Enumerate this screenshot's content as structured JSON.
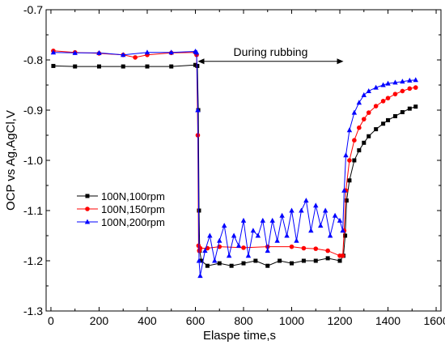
{
  "chart_data": {
    "type": "line",
    "title": "",
    "xlabel": "Elaspe time,s",
    "ylabel": "OCP vs Ag,AgCl,V",
    "xlim": [
      -20,
      1620
    ],
    "ylim": [
      -1.3,
      -0.7
    ],
    "xticks": [
      0,
      200,
      400,
      600,
      800,
      1000,
      1200,
      1400,
      1600
    ],
    "yticks": [
      -0.7,
      -0.8,
      -0.9,
      -1.0,
      -1.1,
      -1.2,
      -1.3
    ],
    "xtick_labels": [
      "0",
      "200",
      "400",
      "600",
      "800",
      "1000",
      "1200",
      "1400",
      "1600"
    ],
    "ytick_labels": [
      "-0.7",
      "-0.8",
      "-0.9",
      "-1.0",
      "-1.1",
      "-1.2",
      "-1.3"
    ],
    "grid": false,
    "legend_position": "left-middle",
    "annotation": {
      "text": "During rubbing",
      "x_start": 610,
      "x_end": 1215,
      "y": -0.79
    },
    "series": [
      {
        "name": "100N,100rpm",
        "color": "#000000",
        "marker": "square",
        "x": [
          10,
          100,
          200,
          300,
          400,
          500,
          600,
          608,
          612,
          615,
          618,
          625,
          650,
          700,
          750,
          800,
          850,
          900,
          950,
          1000,
          1050,
          1100,
          1150,
          1200,
          1215,
          1222,
          1228,
          1240,
          1260,
          1280,
          1300,
          1320,
          1350,
          1380,
          1400,
          1430,
          1460,
          1490,
          1515
        ],
        "y": [
          -0.812,
          -0.813,
          -0.813,
          -0.813,
          -0.813,
          -0.813,
          -0.81,
          -0.812,
          -0.9,
          -1.1,
          -1.18,
          -1.2,
          -1.21,
          -1.205,
          -1.21,
          -1.205,
          -1.2,
          -1.21,
          -1.2,
          -1.205,
          -1.2,
          -1.2,
          -1.195,
          -1.2,
          -1.19,
          -1.15,
          -1.08,
          -1.04,
          -1.0,
          -0.98,
          -0.965,
          -0.952,
          -0.938,
          -0.927,
          -0.92,
          -0.912,
          -0.904,
          -0.897,
          -0.893
        ]
      },
      {
        "name": "100N,150rpm",
        "color": "#ff0000",
        "marker": "circle",
        "x": [
          10,
          100,
          200,
          300,
          350,
          400,
          500,
          600,
          605,
          610,
          613,
          616,
          620,
          650,
          700,
          800,
          900,
          1000,
          1050,
          1100,
          1150,
          1200,
          1212,
          1218,
          1225,
          1240,
          1260,
          1280,
          1300,
          1320,
          1350,
          1380,
          1400,
          1430,
          1460,
          1490,
          1515
        ],
        "y": [
          -0.782,
          -0.785,
          -0.787,
          -0.79,
          -0.795,
          -0.79,
          -0.786,
          -0.785,
          -0.79,
          -0.95,
          -1.17,
          -1.18,
          -1.175,
          -1.175,
          -1.172,
          -1.174,
          -1.172,
          -1.172,
          -1.175,
          -1.176,
          -1.18,
          -1.19,
          -1.19,
          -1.14,
          -1.06,
          -1.0,
          -0.96,
          -0.935,
          -0.918,
          -0.905,
          -0.892,
          -0.882,
          -0.876,
          -0.868,
          -0.862,
          -0.857,
          -0.855
        ]
      },
      {
        "name": "100N,200rpm",
        "color": "#0000ff",
        "marker": "triangle",
        "x": [
          10,
          100,
          200,
          300,
          400,
          500,
          600,
          605,
          610,
          615,
          620,
          640,
          660,
          680,
          700,
          720,
          740,
          760,
          780,
          800,
          820,
          840,
          860,
          880,
          900,
          920,
          940,
          960,
          980,
          1000,
          1020,
          1040,
          1060,
          1080,
          1100,
          1120,
          1140,
          1160,
          1180,
          1200,
          1212,
          1218,
          1225,
          1240,
          1260,
          1280,
          1300,
          1320,
          1350,
          1380,
          1400,
          1430,
          1460,
          1490,
          1515
        ],
        "y": [
          -0.785,
          -0.786,
          -0.786,
          -0.79,
          -0.785,
          -0.785,
          -0.783,
          -0.785,
          -0.9,
          -1.2,
          -1.23,
          -1.18,
          -1.15,
          -1.2,
          -1.16,
          -1.13,
          -1.19,
          -1.15,
          -1.17,
          -1.12,
          -1.19,
          -1.14,
          -1.15,
          -1.12,
          -1.18,
          -1.12,
          -1.16,
          -1.11,
          -1.15,
          -1.1,
          -1.16,
          -1.1,
          -1.08,
          -1.14,
          -1.09,
          -1.13,
          -1.1,
          -1.15,
          -1.11,
          -1.12,
          -1.14,
          -1.06,
          -0.99,
          -0.94,
          -0.905,
          -0.885,
          -0.87,
          -0.862,
          -0.855,
          -0.85,
          -0.847,
          -0.845,
          -0.843,
          -0.841,
          -0.84
        ]
      }
    ]
  }
}
